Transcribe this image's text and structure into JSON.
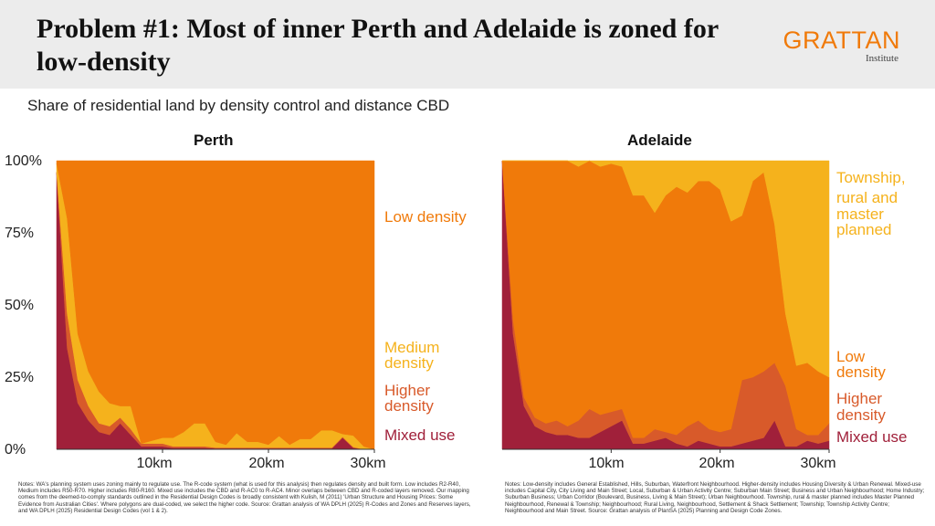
{
  "title": "Problem #1: Most of inner Perth and Adelaide is zoned for low-density",
  "logo": {
    "main": "GRATTAN",
    "sub": "Institute"
  },
  "subtitle": "Share of residential land by density control and distance CBD",
  "colors": {
    "mixed": "#a0203a",
    "higher": "#d85a2a",
    "low": "#f07a0a",
    "medium": "#f5b21c",
    "township": "#f5b21c"
  },
  "chart_data": [
    {
      "type": "area",
      "title": "Perth",
      "x": [
        0,
        1,
        2,
        3,
        4,
        5,
        6,
        7,
        8,
        9,
        10,
        11,
        12,
        13,
        14,
        15,
        16,
        17,
        18,
        19,
        20,
        21,
        22,
        23,
        24,
        25,
        26,
        27,
        28,
        29,
        30
      ],
      "xlim": [
        0,
        30
      ],
      "ylim": [
        0,
        100
      ],
      "x_ticks": [
        "10km",
        "20km",
        "30km"
      ],
      "y_ticks": [
        "0%",
        "25%",
        "50%",
        "75%",
        "100%"
      ],
      "series": [
        {
          "name": "Mixed use",
          "values": [
            96,
            35,
            16,
            10,
            6,
            5,
            9,
            5,
            1,
            1,
            1,
            0.5,
            0.5,
            0.5,
            0.5,
            0.3,
            0.3,
            0.3,
            0.3,
            0.3,
            0.3,
            0.3,
            0.3,
            0.3,
            0.3,
            0.3,
            0.3,
            4,
            0.5,
            0,
            0
          ]
        },
        {
          "name": "Higher density",
          "values": [
            0,
            12,
            8,
            5,
            3,
            3,
            2,
            2,
            1,
            1,
            1,
            0.5,
            0.5,
            0.5,
            0.5,
            0.3,
            0.3,
            0.3,
            0.3,
            0.3,
            0.3,
            0.3,
            0.3,
            0.3,
            0.3,
            0.3,
            0.3,
            0.3,
            0.3,
            0,
            0
          ]
        },
        {
          "name": "Medium density",
          "values": [
            3,
            33,
            16,
            12,
            11,
            8,
            4,
            8,
            0,
            1,
            2,
            3,
            5,
            8,
            8,
            2,
            1,
            5,
            2,
            2,
            1,
            4,
            1,
            3,
            3,
            6,
            6,
            1,
            4,
            1,
            0
          ]
        },
        {
          "name": "Low density",
          "values": [
            1,
            20,
            60,
            73,
            80,
            84,
            85,
            85,
            98,
            97,
            96,
            96,
            94,
            91,
            91,
            97.4,
            98.4,
            94.4,
            97.4,
            97.4,
            98.4,
            95.4,
            98.4,
            96.4,
            96.4,
            93.4,
            93.4,
            94.7,
            95.2,
            99,
            100
          ]
        }
      ],
      "labels": [
        "Low density",
        "Medium density",
        "Higher density",
        "Mixed use"
      ]
    },
    {
      "type": "area",
      "title": "Adelaide",
      "x": [
        0,
        1,
        2,
        3,
        4,
        5,
        6,
        7,
        8,
        9,
        10,
        11,
        12,
        13,
        14,
        15,
        16,
        17,
        18,
        19,
        20,
        21,
        22,
        23,
        24,
        25,
        26,
        27,
        28,
        29,
        30
      ],
      "xlim": [
        0,
        30
      ],
      "ylim": [
        0,
        100
      ],
      "x_ticks": [
        "10km",
        "20km",
        "30km"
      ],
      "y_ticks": [
        "0%",
        "25%",
        "50%",
        "75%",
        "100%"
      ],
      "series": [
        {
          "name": "Mixed use",
          "values": [
            100,
            40,
            15,
            8,
            6,
            5,
            5,
            4,
            4,
            6,
            8,
            10,
            2,
            2,
            3,
            4,
            2,
            1,
            3,
            2,
            1,
            1,
            2,
            3,
            4,
            10,
            1,
            1,
            3,
            2,
            3
          ]
        },
        {
          "name": "Higher density",
          "values": [
            0,
            5,
            3,
            3,
            3,
            5,
            3,
            6,
            10,
            6,
            5,
            4,
            2,
            2,
            4,
            2,
            3,
            7,
            7,
            5,
            5,
            6,
            22,
            22,
            23,
            20,
            21,
            6,
            2,
            3,
            6
          ]
        },
        {
          "name": "Low density",
          "values": [
            0,
            55,
            82,
            89,
            91,
            90,
            92,
            88,
            86,
            86,
            86,
            84,
            84,
            84,
            75,
            82,
            86,
            81,
            83,
            86,
            84,
            72,
            57,
            68,
            69,
            48,
            25,
            22,
            25,
            22,
            16
          ]
        },
        {
          "name": "Township, rural and master planned",
          "values": [
            0,
            0,
            0,
            0,
            0,
            0,
            0,
            2,
            0,
            2,
            1,
            2,
            12,
            12,
            18,
            12,
            9,
            11,
            7,
            7,
            10,
            21,
            19,
            7,
            4,
            22,
            53,
            71,
            70,
            73,
            75
          ]
        }
      ],
      "labels": [
        "Township, rural and master planned",
        "Low density",
        "Higher density",
        "Mixed use"
      ]
    }
  ],
  "perth_labels": {
    "low": "Low density",
    "medium": "Medium density",
    "higher": "Higher density",
    "mixed": "Mixed use"
  },
  "adelaide_labels": {
    "township": "Township, rural and master planned",
    "low": "Low density",
    "higher": "Higher density",
    "mixed": "Mixed use"
  },
  "axes": {
    "y_ticks": [
      "0%",
      "25%",
      "50%",
      "75%",
      "100%"
    ],
    "x_ticks": [
      "10km",
      "20km",
      "30km"
    ]
  },
  "notes_perth": "Notes: WA's planning system uses zoning mainly to regulate use. The R-code system (what is used for this analysis) then regulates density and built form. Low includes R2-R40, Medium includes R50-R70. Higher includes R80-R160. Mixed use includes the CBD and R-AC0 to R-AC4. Minor overlaps between CBD and R-coded layers removed. Our mapping comes from the deemed-to-comply standards outlined in the Residential Design Codes is broadly consistent with Kulish, M (2011) 'Urban Structure and Housing Prices: Some Evidence from Australian Cities'. Where polygons are dual-coded, we select the higher code. Source: Grattan analysis of WA DPLH (2025) R-Codes and Zones and Reserves layers, and WA DPLH (2025) Residential Design Codes (vol 1 & 2).",
  "notes_adelaide": "Notes: Low-density includes General Established, Hills, Suburban, Waterfront Neighbourhood. Higher-density includes Housing Diversity & Urban Renewal. Mixed-use includes Capital City, City Living and Main Street; Local, Suburban & Urban Activity Centre; Suburban Main Street; Business and Urban Neighbourhood; Home Industry; Suburban Business; Urban Corridor (Boulevard, Business, Living & Main Street); Urban Neighbourhood. Township, rural & master planned includes Master Planned Neighbourhood, Renewal & Township; Neighbourhood; Rural Living, Neighbourhood, Settlement & Shack Settlement; Township; Township Activity Centre; Neighbourhood and Main Street. Source: Grattan analysis of PlanSA (2025) Planning and Design Code Zones."
}
